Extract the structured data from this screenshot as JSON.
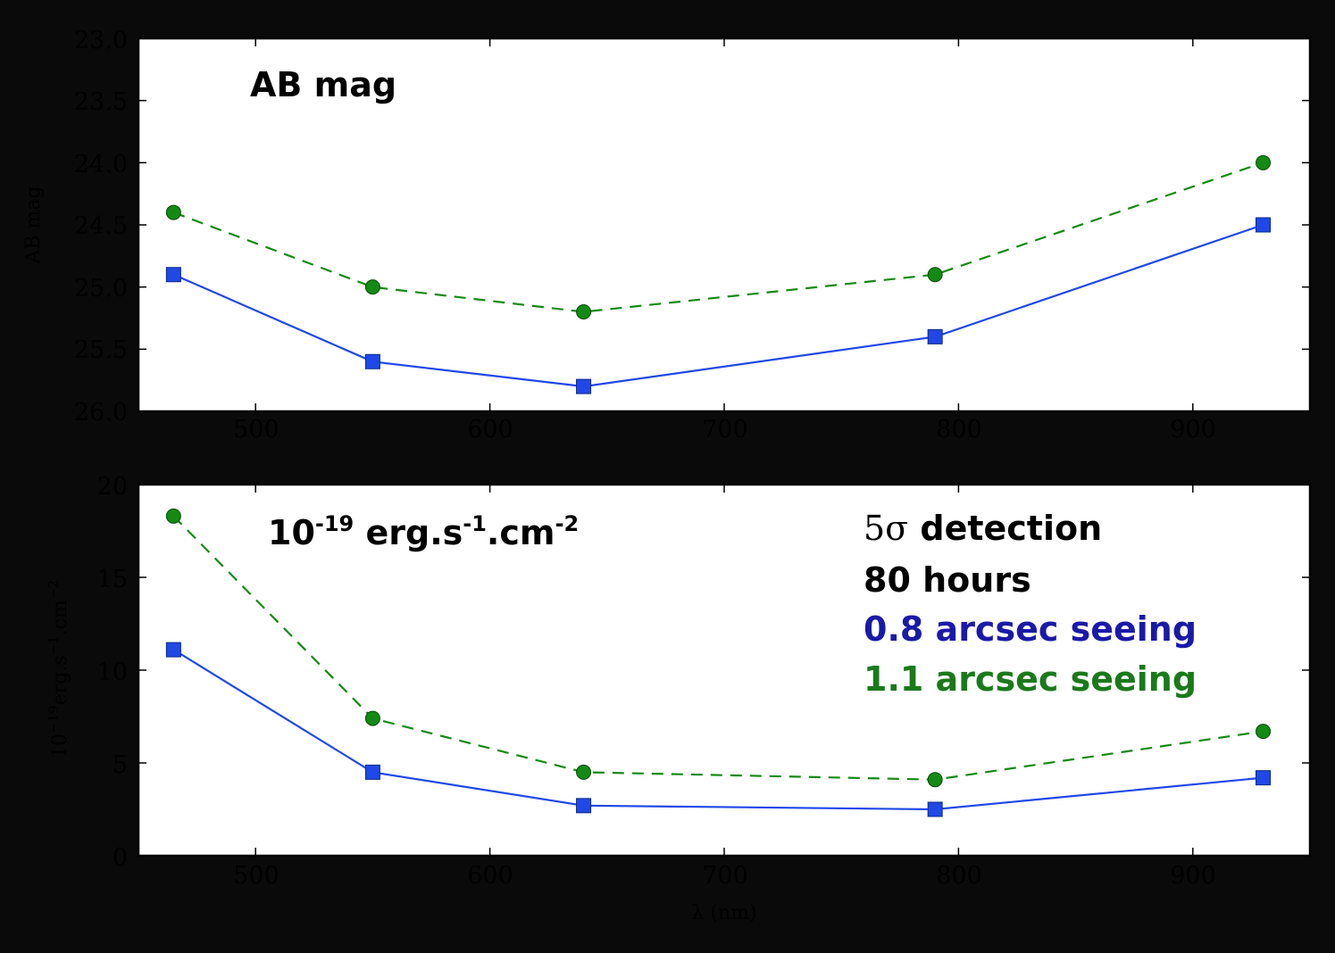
{
  "colors": {
    "seeing_0_8": "#1f48e6",
    "seeing_1_1": "#138a13",
    "seeing_0_8_text": "#1a1aa8",
    "seeing_1_1_text": "#1a7a1a",
    "text": "#000000"
  },
  "annotations": {
    "top_label": "AB mag",
    "bottom_label": {
      "base": "10",
      "exp1": "-19",
      "mid1": " erg.s",
      "exp2": "-1",
      "mid2": ".cm",
      "exp3": "-2"
    },
    "sigma_num": "5",
    "sigma_sym": "σ",
    "detection": " detection",
    "hours": "80 hours",
    "seeing_0_8": "0.8 arcsec seeing",
    "seeing_1_1": "1.1 arcsec seeing"
  },
  "chart_data": [
    {
      "type": "line",
      "x": [
        465,
        550,
        640,
        790,
        930
      ],
      "series": [
        {
          "values": [
            24.9,
            25.6,
            25.8,
            25.4,
            24.5
          ],
          "color": "#1f48e6",
          "style": "solid",
          "marker": "square"
        },
        {
          "values": [
            24.4,
            25.0,
            25.2,
            24.9,
            24.0
          ],
          "color": "#138a13",
          "style": "dashed",
          "marker": "circle"
        }
      ],
      "ylabel": "AB mag",
      "xlim": [
        450,
        950
      ],
      "ylim": [
        26.0,
        23.0
      ],
      "y_inverted": true,
      "xticks": [
        "500",
        "600",
        "700",
        "800",
        "900"
      ],
      "yticks": [
        "23.0",
        "23.5",
        "24.0",
        "24.5",
        "25.0",
        "25.5",
        "26.0"
      ],
      "grid": false
    },
    {
      "type": "line",
      "x": [
        465,
        550,
        640,
        790,
        930
      ],
      "series": [
        {
          "values": [
            11.1,
            4.5,
            2.7,
            2.5,
            4.2
          ],
          "color": "#1f48e6",
          "style": "solid",
          "marker": "square"
        },
        {
          "values": [
            18.3,
            7.4,
            4.5,
            4.1,
            6.7
          ],
          "color": "#138a13",
          "style": "dashed",
          "marker": "circle"
        }
      ],
      "ylabel": {
        "base": "10",
        "exp1": "−19",
        "mid1": "erg.s",
        "exp2": "−1",
        "mid2": ".cm",
        "exp3": "−2"
      },
      "xlabel": "λ (nm)",
      "xlim": [
        450,
        950
      ],
      "ylim": [
        0,
        20
      ],
      "xticks": [
        "500",
        "600",
        "700",
        "800",
        "900"
      ],
      "yticks": [
        "0",
        "5",
        "10",
        "15",
        "20"
      ],
      "grid": false
    }
  ]
}
